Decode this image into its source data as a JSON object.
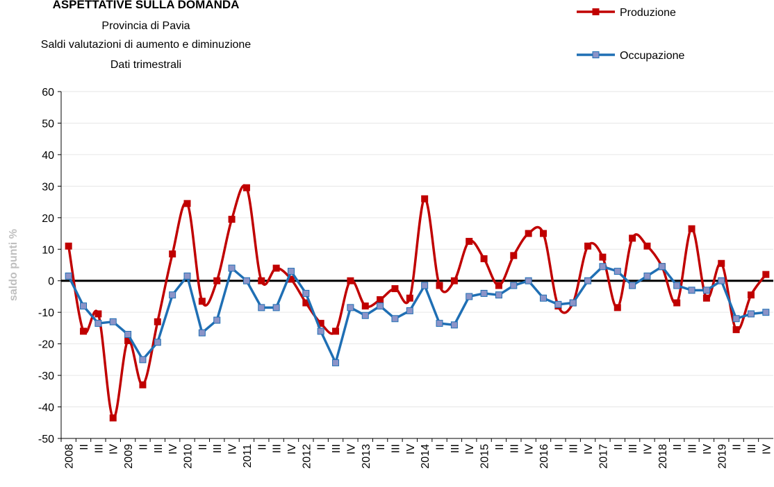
{
  "chart_data": {
    "type": "line",
    "title": "ASPETTATIVE SULLA DOMANDA",
    "subtitle": [
      "Provincia di Pavia",
      "Saldi valutazioni di aumento e diminuzione",
      "Dati trimestrali"
    ],
    "y_label": "saldo punti %",
    "categories": [
      "2008",
      "II",
      "III",
      "IV",
      "2009",
      "II",
      "III",
      "IV",
      "2010",
      "II",
      "III",
      "IV",
      "2011",
      "II",
      "III",
      "IV",
      "2012",
      "II",
      "III",
      "IV",
      "2013",
      "II",
      "III",
      "IV",
      "2014",
      "II",
      "III",
      "IV",
      "2015",
      "II",
      "III",
      "IV",
      "2016",
      "II",
      "III",
      "IV",
      "2017",
      "II",
      "III",
      "IV",
      "2018",
      "II",
      "III",
      "IV",
      "2019",
      "II",
      "III",
      "IV"
    ],
    "series": [
      {
        "name": "Produzione",
        "color": "#c00000",
        "marker_fill": "#c00000",
        "smooth": true,
        "values": [
          11,
          -16,
          -10.5,
          -43.5,
          -19,
          -33,
          -13,
          8.5,
          24.5,
          -6.5,
          0,
          19.5,
          29.5,
          0,
          4,
          0.5,
          -7,
          -13.5,
          -16,
          0,
          -8,
          -6,
          -2.5,
          -5.5,
          26,
          -1.5,
          0,
          12.5,
          7,
          -1.5,
          8,
          15,
          15,
          -8,
          -7,
          11,
          7.5,
          -8.5,
          13.5,
          11,
          4.5,
          -7,
          16.5,
          -5.5,
          5.5,
          -15.5,
          -4.5,
          2
        ]
      },
      {
        "name": "Occupazione",
        "color": "#1f6fb4",
        "marker_fill": "#8c94c8",
        "smooth": false,
        "values": [
          1.5,
          -8,
          -13.5,
          -13,
          -17,
          -25,
          -19.5,
          -4.5,
          1.5,
          -16.5,
          -12.5,
          4,
          0,
          -8.5,
          -8.5,
          3,
          -4,
          -16,
          -26,
          -8.5,
          -11,
          -8,
          -12,
          -9.5,
          -1.5,
          -13.5,
          -14,
          -5,
          -4,
          -4.5,
          -1.5,
          0,
          -5.5,
          -7.5,
          -7,
          0,
          4.5,
          3,
          -1.5,
          1.5,
          4.5,
          -1.5,
          -3,
          -3,
          0,
          -12,
          -10.5,
          -10
        ]
      }
    ],
    "ylim": [
      -50,
      60
    ],
    "yticks": [
      -50,
      -40,
      -30,
      -20,
      -10,
      0,
      10,
      20,
      30,
      40,
      50,
      60
    ],
    "grid": true,
    "legend": "top-right"
  }
}
